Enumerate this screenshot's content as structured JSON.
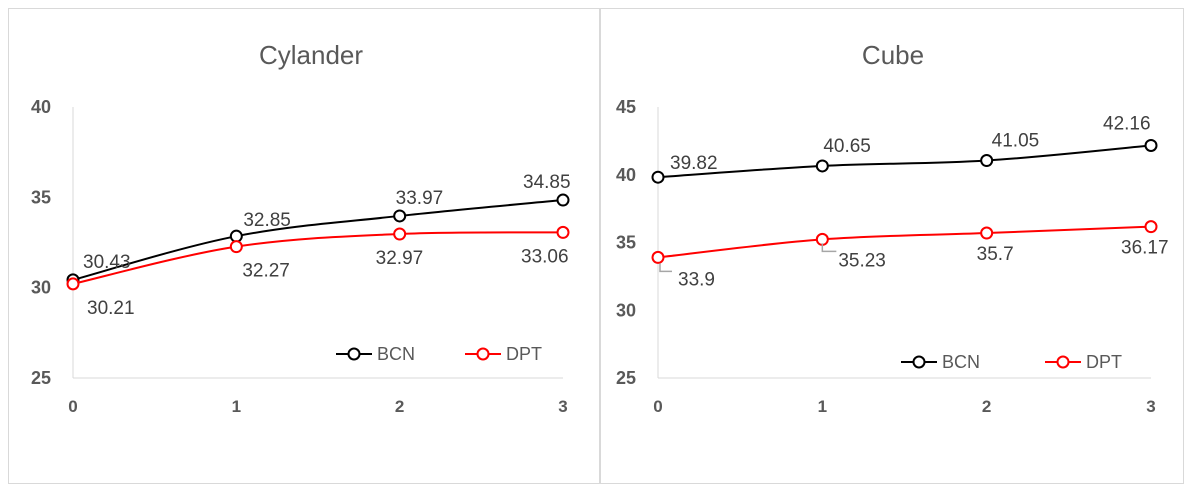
{
  "chart_data": [
    {
      "type": "line",
      "title": "Cylander",
      "x": [
        0,
        1,
        2,
        3
      ],
      "ylim": [
        25,
        40
      ],
      "yticks": [
        25,
        30,
        35,
        40
      ],
      "grid": false,
      "legend": "bottom-right",
      "series": [
        {
          "name": "BCN",
          "color": "#000000",
          "values": [
            30.43,
            32.85,
            33.97,
            34.85
          ],
          "labels": [
            "30.43",
            "32.85",
            "33.97",
            "34.85"
          ]
        },
        {
          "name": "DPT",
          "color": "#ff0000",
          "values": [
            30.21,
            32.27,
            32.97,
            33.06
          ],
          "labels": [
            "30.21",
            "32.27",
            "32.97",
            "33.06"
          ]
        }
      ]
    },
    {
      "type": "line",
      "title": "Cube",
      "x": [
        0,
        1,
        2,
        3
      ],
      "ylim": [
        25,
        45
      ],
      "yticks": [
        25,
        30,
        35,
        40,
        45
      ],
      "grid": false,
      "legend": "bottom-right",
      "series": [
        {
          "name": "BCN",
          "color": "#000000",
          "values": [
            39.82,
            40.65,
            41.05,
            42.16
          ],
          "labels": [
            "39.82",
            "40.65",
            "41.05",
            "42.16"
          ]
        },
        {
          "name": "DPT",
          "color": "#ff0000",
          "values": [
            33.9,
            35.23,
            35.7,
            36.17
          ],
          "labels": [
            "33.9",
            "35.23",
            "35.7",
            "36.17"
          ]
        }
      ]
    }
  ]
}
